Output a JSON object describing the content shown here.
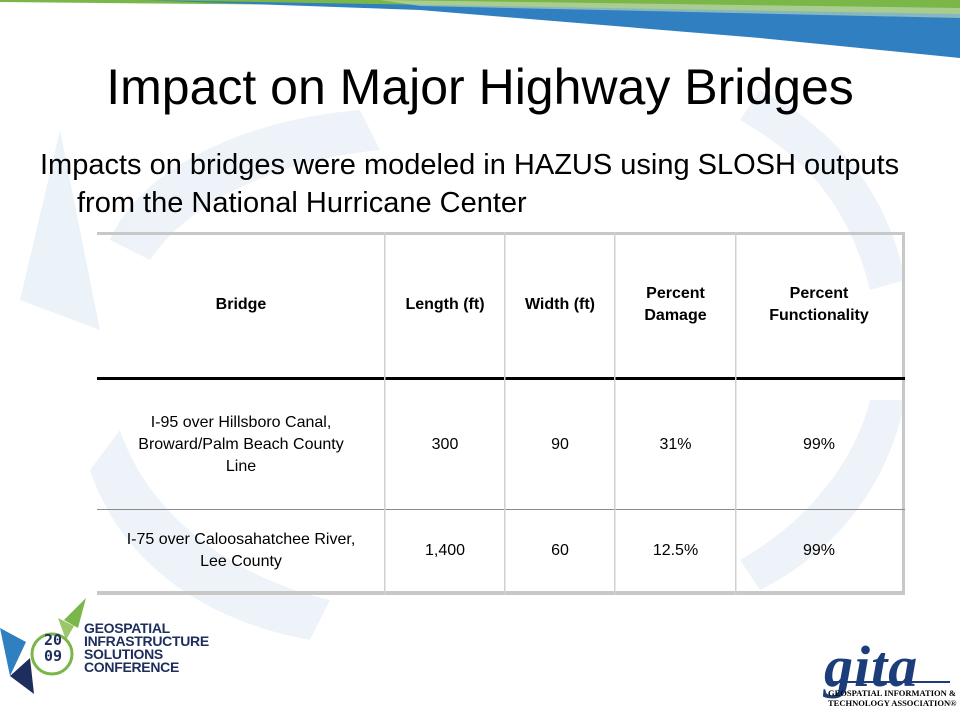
{
  "slide": {
    "title": "Impact on Major Highway Bridges",
    "subtitle": "Impacts on bridges were modeled in HAZUS using SLOSH outputs from the National Hurricane Center"
  },
  "table": {
    "headers": [
      "Bridge",
      "Length (ft)",
      "Width (ft)",
      "Percent Damage",
      "Percent Functionality"
    ],
    "rows": [
      [
        "I-95 over Hillsboro Canal, Broward/Palm Beach County Line",
        "300",
        "90",
        "31%",
        "99%"
      ],
      [
        "I-75 over Caloosahatchee River, Lee County",
        "1,400",
        "60",
        "12.5%",
        "99%"
      ]
    ]
  },
  "logos": {
    "conference": {
      "year_top": "20",
      "year_bottom": "09",
      "lines": [
        "GEOSPATIAL",
        "INFRASTRUCTURE",
        "SOLUTIONS",
        "CONFERENCE"
      ]
    },
    "gita": {
      "wordmark": "gita",
      "lines": [
        "GEOSPATIAL INFORMATION &",
        "TECHNOLOGY ASSOCIATION®"
      ]
    }
  },
  "colors": {
    "top_band_green": "#7ab648",
    "top_band_blue": "#2f7fc1",
    "navy": "#1d2e5e",
    "gita_blue": "#1d3c7a"
  }
}
